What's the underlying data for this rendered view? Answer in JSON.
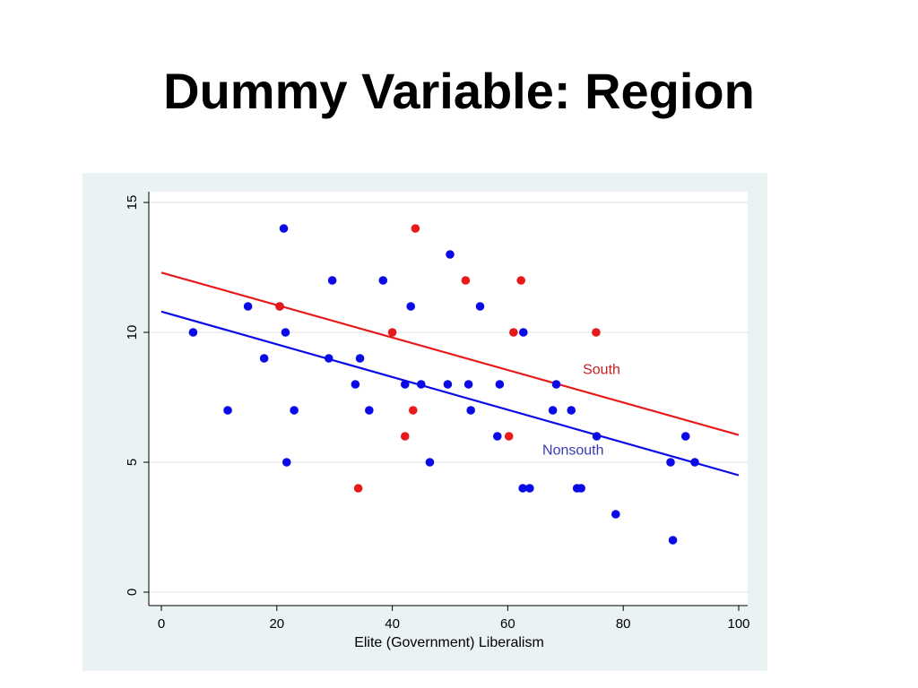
{
  "slide": {
    "title": "Dummy Variable: Region"
  },
  "chart_data": {
    "type": "scatter",
    "title": "",
    "xlabel": "Elite (Government) Liberalism",
    "ylabel": "",
    "xlim": [
      0,
      100
    ],
    "ylim": [
      0,
      15
    ],
    "xticks": [
      0,
      20,
      40,
      60,
      80,
      100
    ],
    "yticks": [
      0,
      5,
      10,
      15
    ],
    "grid": true,
    "colors": {
      "panel_background": "#eaf2f3",
      "plot_background": "#ffffff",
      "nonsouth": "#0a0ae6",
      "south": "#e61a1a",
      "south_label": "#c81e1e",
      "nonsouth_label": "#3a3ab8",
      "grid": "#e6ecee",
      "axis": "#000000"
    },
    "series": [
      {
        "name": "Nonsouth",
        "color_key": "nonsouth",
        "points": [
          [
            5.5,
            10
          ],
          [
            11.5,
            7
          ],
          [
            15,
            11
          ],
          [
            17.8,
            9
          ],
          [
            20.5,
            11
          ],
          [
            21.2,
            14
          ],
          [
            21.5,
            10
          ],
          [
            21.7,
            5
          ],
          [
            23,
            7
          ],
          [
            29,
            9
          ],
          [
            29.6,
            12
          ],
          [
            33.6,
            8
          ],
          [
            34.4,
            9
          ],
          [
            36,
            7
          ],
          [
            38.4,
            12
          ],
          [
            42.2,
            8
          ],
          [
            43.2,
            11
          ],
          [
            45,
            8
          ],
          [
            46.5,
            5
          ],
          [
            49.6,
            8
          ],
          [
            50,
            13
          ],
          [
            53.2,
            8
          ],
          [
            53.6,
            7
          ],
          [
            55.2,
            11
          ],
          [
            58.2,
            6
          ],
          [
            58.6,
            8
          ],
          [
            62.6,
            4
          ],
          [
            62.7,
            10
          ],
          [
            63.8,
            4
          ],
          [
            67.8,
            7
          ],
          [
            68.4,
            8
          ],
          [
            71,
            7
          ],
          [
            72,
            4
          ],
          [
            72.7,
            4
          ],
          [
            75.4,
            6
          ],
          [
            78.7,
            3
          ],
          [
            88.2,
            5
          ],
          [
            88.6,
            2
          ],
          [
            90.8,
            6
          ],
          [
            92.4,
            5
          ]
        ],
        "fit": {
          "x1": 0,
          "y1": 10.8,
          "x2": 100,
          "y2": 4.5
        },
        "label": "Nonsouth",
        "label_at": [
          66,
          5.3
        ]
      },
      {
        "name": "South",
        "color_key": "south",
        "points": [
          [
            20.5,
            11
          ],
          [
            34.1,
            4
          ],
          [
            40,
            10
          ],
          [
            42.2,
            6
          ],
          [
            43.6,
            7
          ],
          [
            44,
            14
          ],
          [
            52.7,
            12
          ],
          [
            60.2,
            6
          ],
          [
            61,
            10
          ],
          [
            62.3,
            12
          ],
          [
            75.3,
            10
          ]
        ],
        "fit": {
          "x1": 0,
          "y1": 12.3,
          "x2": 100,
          "y2": 6.05
        },
        "label": "South",
        "label_at": [
          73,
          8.4
        ]
      }
    ]
  }
}
